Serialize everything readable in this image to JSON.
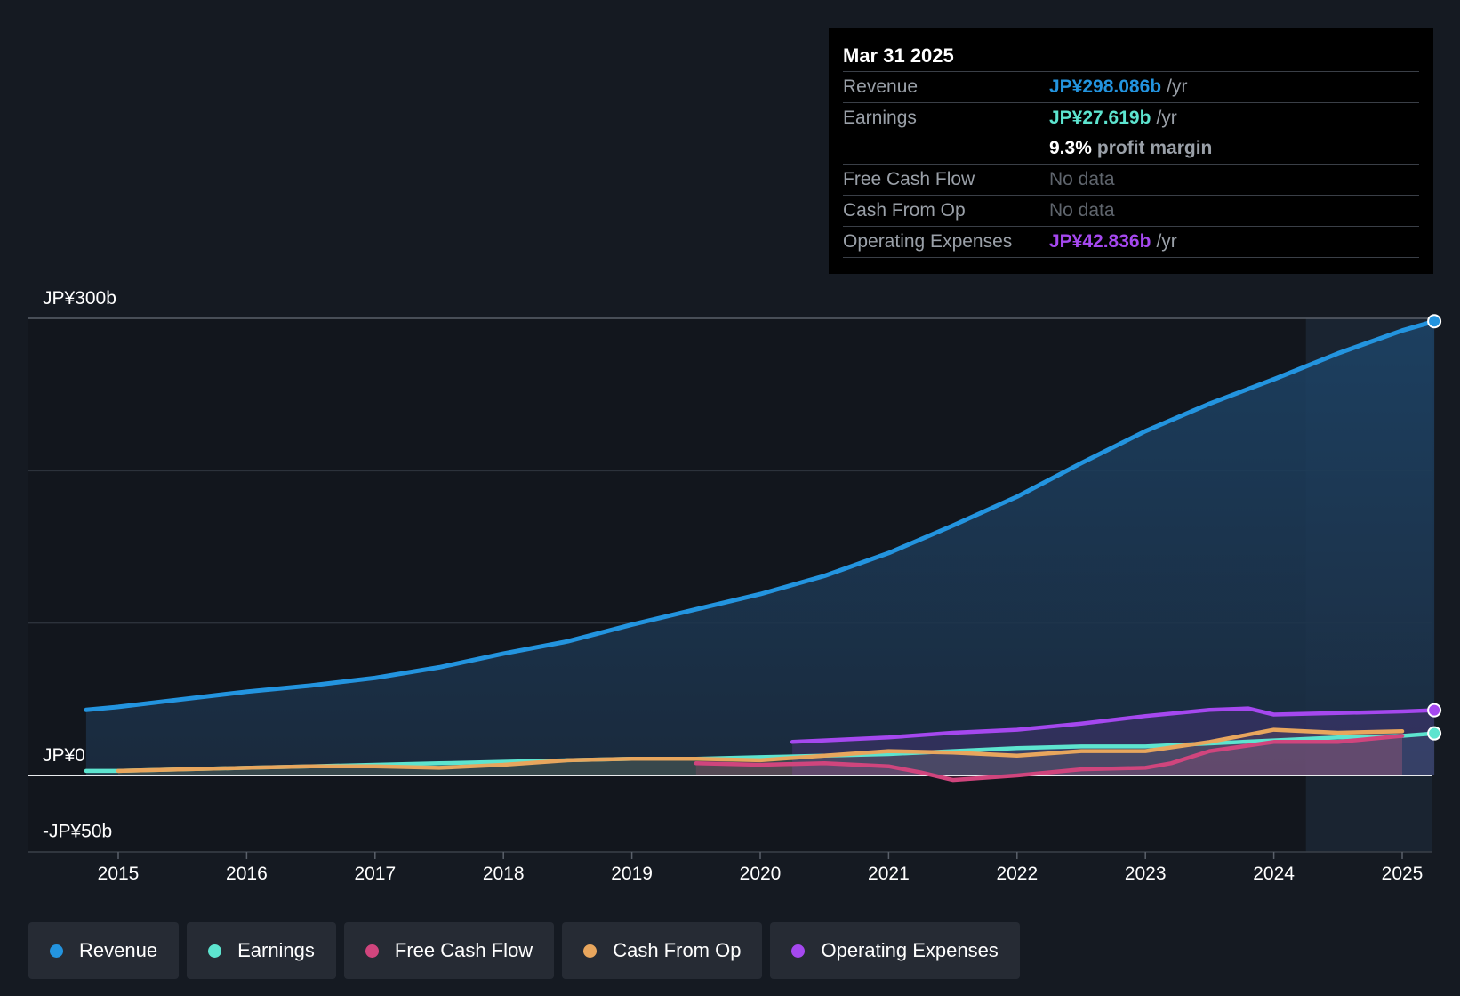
{
  "chart_data": {
    "type": "area",
    "y_axis_labels": [
      "JP¥300b",
      "JP¥0",
      "-JP¥50b"
    ],
    "ylim": [
      -50,
      300
    ],
    "x_ticks": [
      "2015",
      "2016",
      "2017",
      "2018",
      "2019",
      "2020",
      "2021",
      "2022",
      "2023",
      "2024",
      "2025"
    ],
    "series": [
      {
        "name": "Revenue",
        "color": "#2394df",
        "points": [
          [
            2014.75,
            43
          ],
          [
            2015.0,
            45
          ],
          [
            2015.5,
            50
          ],
          [
            2016.0,
            55
          ],
          [
            2016.5,
            59
          ],
          [
            2017.0,
            64
          ],
          [
            2017.5,
            71
          ],
          [
            2018.0,
            80
          ],
          [
            2018.5,
            88
          ],
          [
            2019.0,
            99
          ],
          [
            2019.5,
            109
          ],
          [
            2020.0,
            119
          ],
          [
            2020.5,
            131
          ],
          [
            2021.0,
            146
          ],
          [
            2021.5,
            164
          ],
          [
            2022.0,
            183
          ],
          [
            2022.5,
            205
          ],
          [
            2023.0,
            226
          ],
          [
            2023.5,
            244
          ],
          [
            2024.0,
            260
          ],
          [
            2024.5,
            277
          ],
          [
            2025.0,
            292
          ],
          [
            2025.25,
            298.086
          ]
        ]
      },
      {
        "name": "Earnings",
        "color": "#5de4cf",
        "points": [
          [
            2014.75,
            3
          ],
          [
            2015.0,
            3
          ],
          [
            2015.5,
            4
          ],
          [
            2016.0,
            5
          ],
          [
            2016.5,
            6
          ],
          [
            2017.0,
            7
          ],
          [
            2017.5,
            8
          ],
          [
            2018.0,
            9
          ],
          [
            2018.5,
            10
          ],
          [
            2019.0,
            11
          ],
          [
            2019.5,
            11
          ],
          [
            2020.0,
            12
          ],
          [
            2020.5,
            13
          ],
          [
            2021.0,
            14
          ],
          [
            2021.5,
            16
          ],
          [
            2022.0,
            18
          ],
          [
            2022.5,
            19
          ],
          [
            2023.0,
            19
          ],
          [
            2023.5,
            21
          ],
          [
            2024.0,
            23
          ],
          [
            2024.5,
            25
          ],
          [
            2025.0,
            26
          ],
          [
            2025.25,
            27.619
          ]
        ]
      },
      {
        "name": "Free Cash Flow",
        "color": "#d0457d",
        "points": [
          [
            2019.5,
            8
          ],
          [
            2020.0,
            7
          ],
          [
            2020.5,
            8
          ],
          [
            2021.0,
            6
          ],
          [
            2021.25,
            2
          ],
          [
            2021.5,
            -3
          ],
          [
            2022.0,
            0
          ],
          [
            2022.5,
            4
          ],
          [
            2023.0,
            5
          ],
          [
            2023.2,
            8
          ],
          [
            2023.5,
            16
          ],
          [
            2024.0,
            22
          ],
          [
            2024.5,
            22
          ],
          [
            2025.0,
            26
          ]
        ]
      },
      {
        "name": "Cash From Op",
        "color": "#e8a65d",
        "points": [
          [
            2015.0,
            3
          ],
          [
            2015.5,
            4
          ],
          [
            2016.0,
            5
          ],
          [
            2016.5,
            6
          ],
          [
            2017.0,
            6
          ],
          [
            2017.5,
            5
          ],
          [
            2018.0,
            7
          ],
          [
            2018.5,
            10
          ],
          [
            2019.0,
            11
          ],
          [
            2019.5,
            11
          ],
          [
            2020.0,
            10
          ],
          [
            2020.5,
            13
          ],
          [
            2021.0,
            16
          ],
          [
            2021.5,
            15
          ],
          [
            2022.0,
            13
          ],
          [
            2022.5,
            16
          ],
          [
            2023.0,
            16
          ],
          [
            2023.5,
            22
          ],
          [
            2024.0,
            30
          ],
          [
            2024.5,
            28
          ],
          [
            2025.0,
            29
          ]
        ]
      },
      {
        "name": "Operating Expenses",
        "color": "#a548ef",
        "points": [
          [
            2020.25,
            22
          ],
          [
            2020.5,
            23
          ],
          [
            2021.0,
            25
          ],
          [
            2021.5,
            28
          ],
          [
            2022.0,
            30
          ],
          [
            2022.5,
            34
          ],
          [
            2023.0,
            39
          ],
          [
            2023.5,
            43
          ],
          [
            2023.8,
            44
          ],
          [
            2024.0,
            40
          ],
          [
            2024.5,
            41
          ],
          [
            2025.0,
            42
          ],
          [
            2025.25,
            42.836
          ]
        ]
      }
    ],
    "forecast_shade_start": 2024.25
  },
  "tooltip": {
    "date": "Mar 31 2025",
    "revenue_label": "Revenue",
    "revenue_value": "JP¥298.086b",
    "revenue_unit": "/yr",
    "earnings_label": "Earnings",
    "earnings_value": "JP¥27.619b",
    "earnings_unit": "/yr",
    "margin_value": "9.3%",
    "margin_label": "profit margin",
    "fcf_label": "Free Cash Flow",
    "fcf_value": "No data",
    "cfo_label": "Cash From Op",
    "cfo_value": "No data",
    "opex_label": "Operating Expenses",
    "opex_value": "JP¥42.836b",
    "opex_unit": "/yr"
  },
  "colors": {
    "revenue": "#2394df",
    "earnings": "#5de4cf",
    "fcf": "#d0457d",
    "cfo": "#e8a65d",
    "opex": "#a548ef"
  },
  "legend": [
    {
      "label": "Revenue",
      "color": "#2394df"
    },
    {
      "label": "Earnings",
      "color": "#5de4cf"
    },
    {
      "label": "Free Cash Flow",
      "color": "#d0457d"
    },
    {
      "label": "Cash From Op",
      "color": "#e8a65d"
    },
    {
      "label": "Operating Expenses",
      "color": "#a548ef"
    }
  ]
}
